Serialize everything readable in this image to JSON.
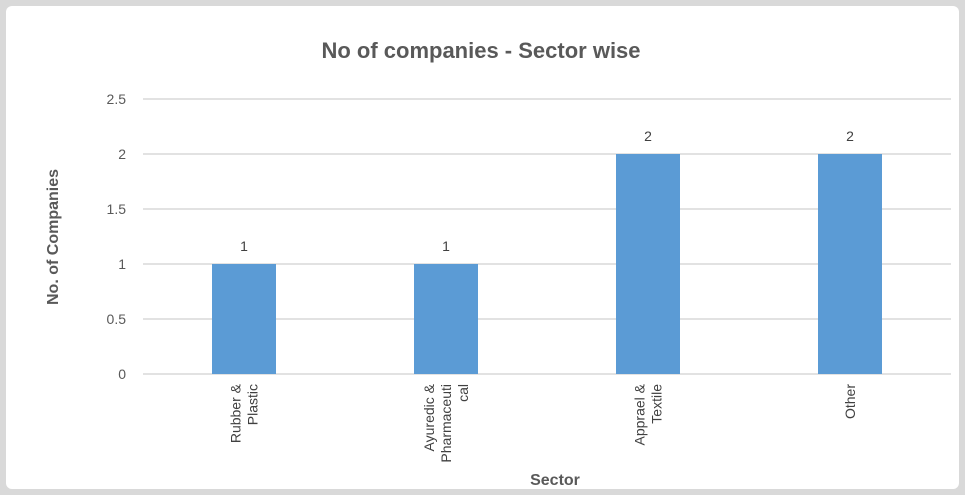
{
  "chart_data": {
    "type": "bar",
    "title": "No of companies - Sector wise",
    "xlabel": "Sector",
    "ylabel": "No. of Companies",
    "categories": [
      [
        "Rubber &",
        "Plastic"
      ],
      [
        "Ayuredic &",
        "Pharmaceuti",
        "cal"
      ],
      [
        "Apprael &",
        "Textile"
      ],
      [
        "Other"
      ]
    ],
    "values": [
      1,
      1,
      2,
      2
    ],
    "data_labels": [
      "1",
      "1",
      "2",
      "2"
    ],
    "yticks": [
      "0",
      "0.5",
      "1",
      "1.5",
      "2",
      "2.5"
    ],
    "ylim": [
      0,
      2.5
    ],
    "grid": true,
    "legend": "none",
    "colors": {
      "bar": "#5b9bd5",
      "grid": "#d9d9d9",
      "frame": "#d9d9d9"
    }
  }
}
